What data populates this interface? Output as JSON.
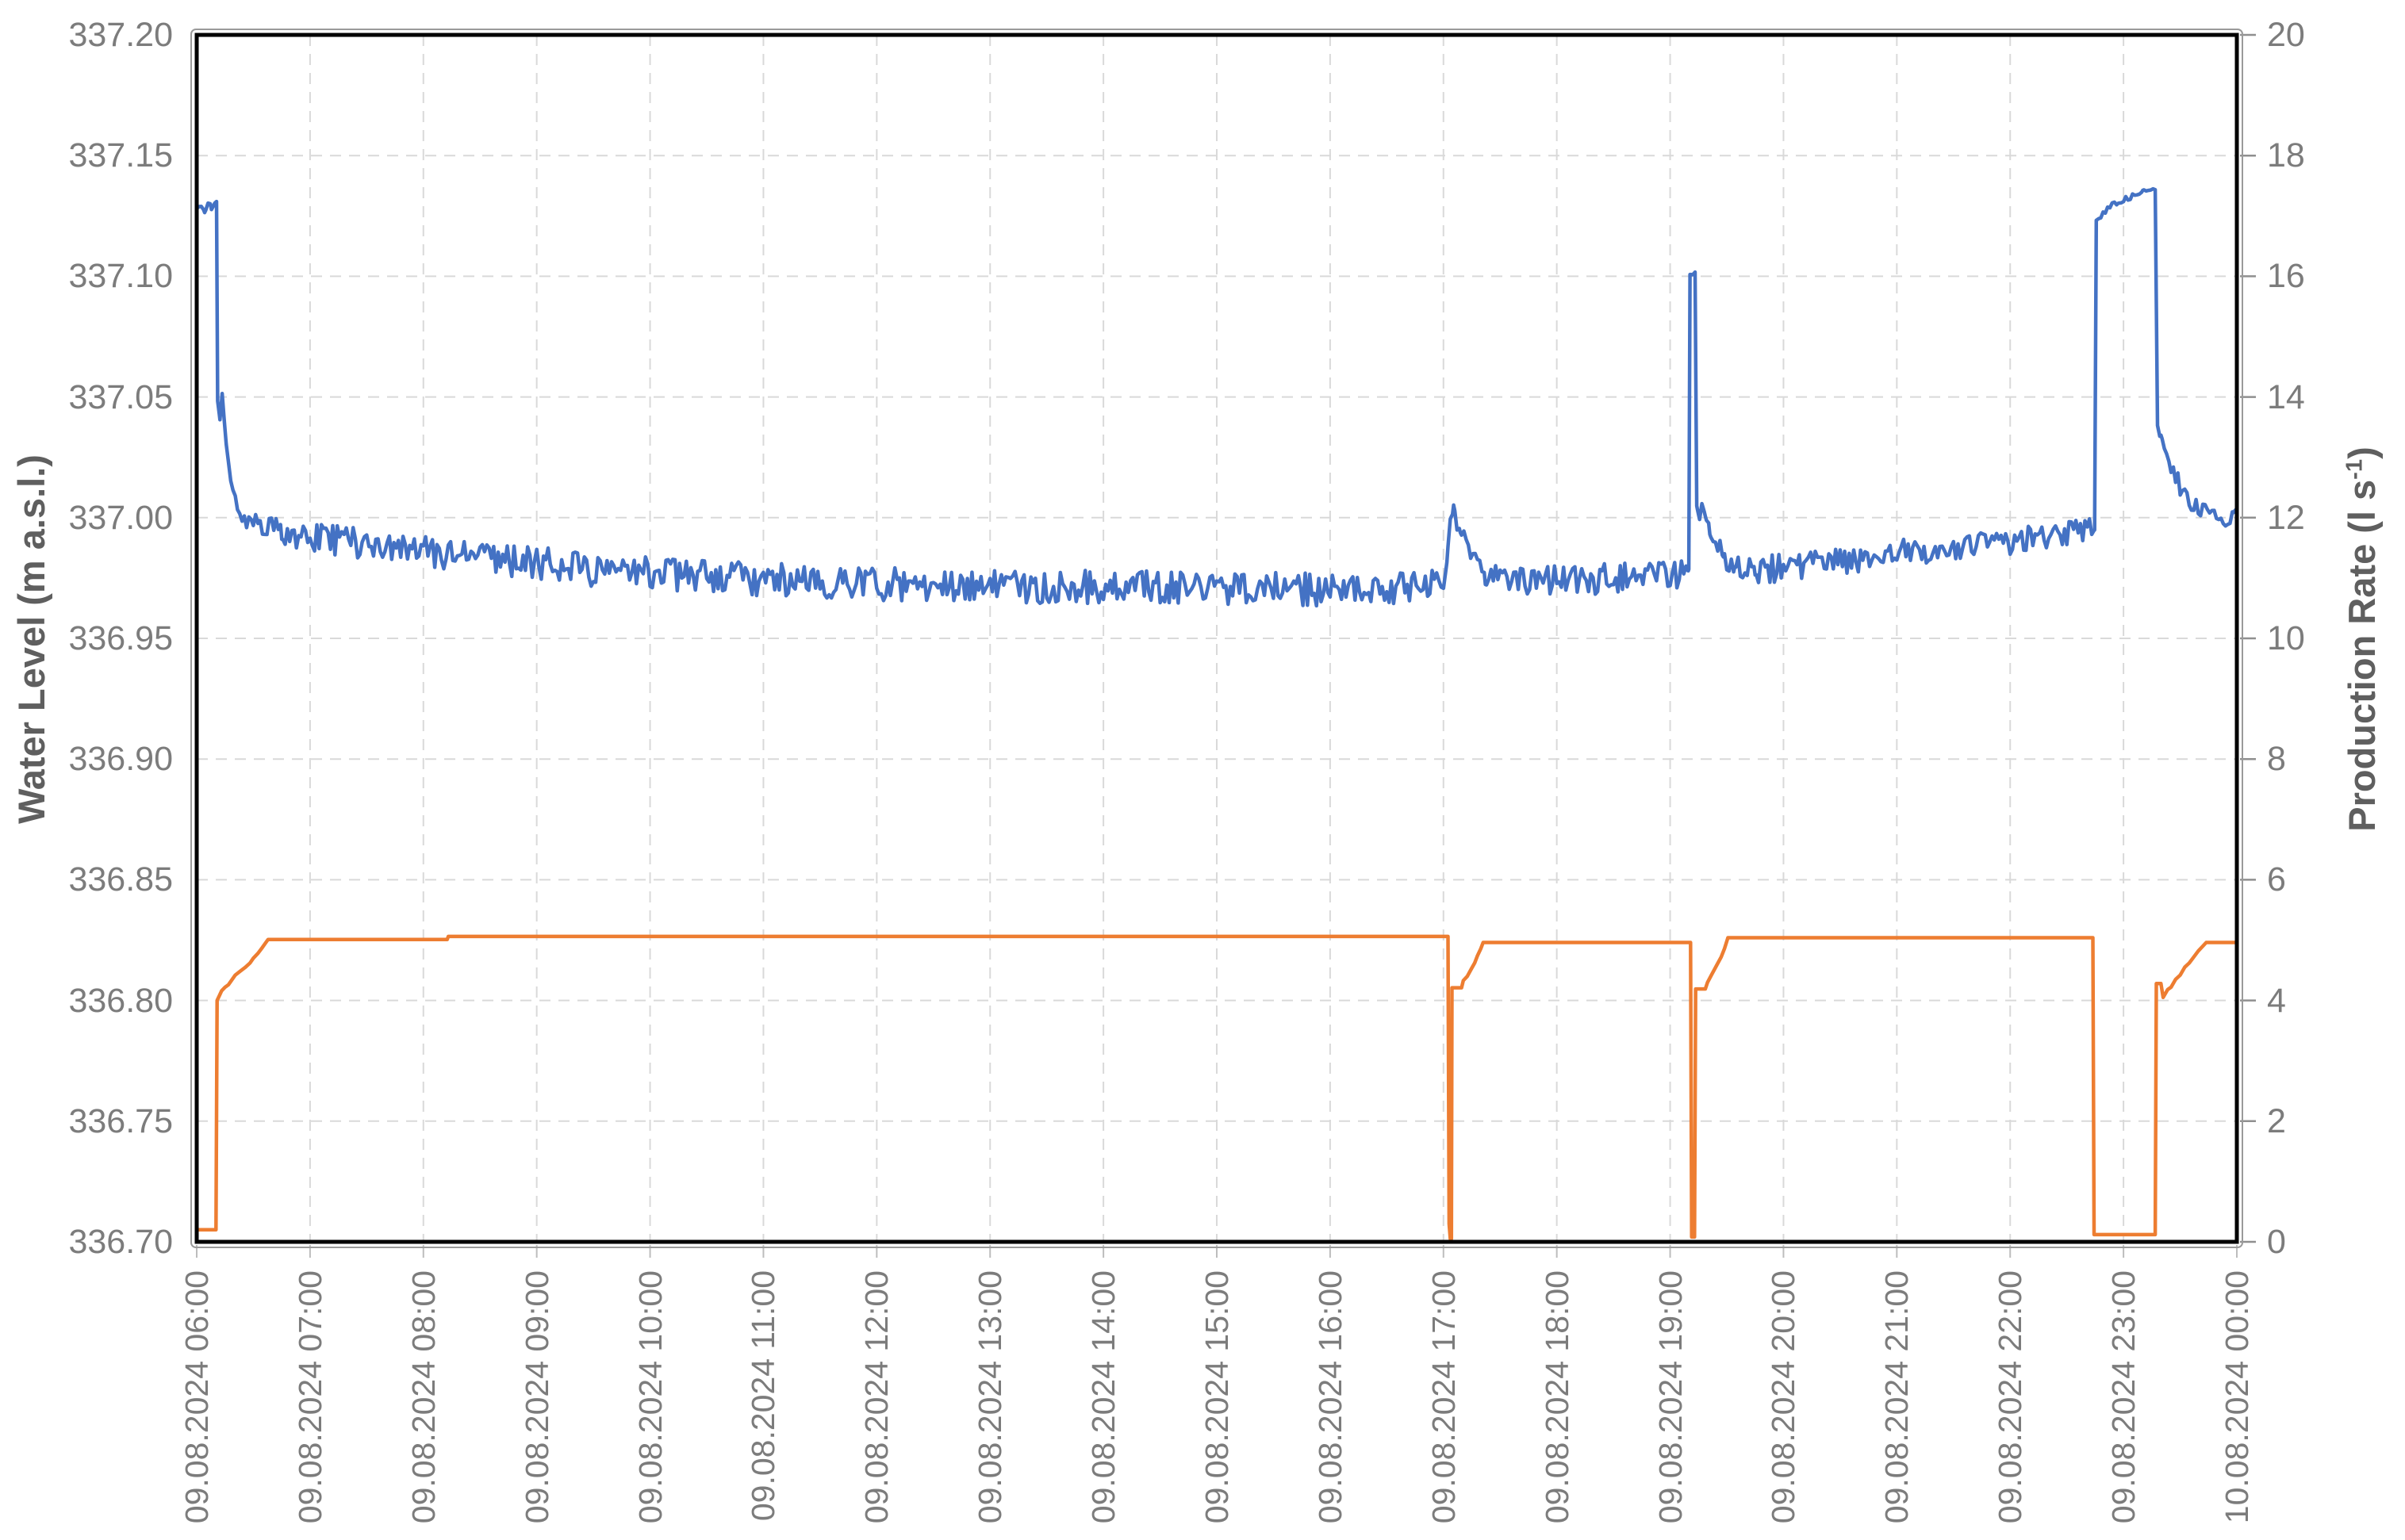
{
  "chart_data": {
    "type": "line",
    "title": "",
    "legend": "none",
    "grid": {
      "shown": true,
      "color": "#d9d9d9",
      "dash": [
        14,
        10
      ]
    },
    "x_axis": {
      "label": "",
      "range_hours": [
        6,
        24
      ],
      "tick_labels": [
        "09.08.2024 06:00",
        "09.08.2024 07:00",
        "09.08.2024 08:00",
        "09.08.2024 09:00",
        "09.08.2024 10:00",
        "09.08.2024 11:00",
        "09.08.2024 12:00",
        "09.08.2024 13:00",
        "09.08.2024 14:00",
        "09.08.2024 15:00",
        "09.08.2024 16:00",
        "09.08.2024 17:00",
        "09.08.2024 18:00",
        "09.08.2024 19:00",
        "09.08.2024 20:00",
        "09.08.2024 21:00",
        "09.08.2024 22:00",
        "09.08.2024 23:00",
        "10.08.2024 00:00"
      ]
    },
    "y_left": {
      "label": "Water Level (m a.s.l.)",
      "min": 336.7,
      "max": 337.2,
      "step": 0.05,
      "tick_labels": [
        "337.20",
        "337.15",
        "337.10",
        "337.05",
        "337.00",
        "336.95",
        "336.90",
        "336.85",
        "336.80",
        "336.75",
        "336.70"
      ]
    },
    "y_right": {
      "label_pre": "Production Rate (l s",
      "label_sup": "-1",
      "label_post": ")",
      "min": 0,
      "max": 20,
      "step": 2,
      "tick_labels": [
        "20",
        "18",
        "16",
        "14",
        "12",
        "10",
        "8",
        "6",
        "4",
        "2",
        "0"
      ]
    },
    "series": [
      {
        "name": "Water Level",
        "axis": "left",
        "color": "#4472C4",
        "line_width": 4.5,
        "noise_amplitude_points": [
          [
            6.0,
            0.0012
          ],
          [
            6.17,
            0.0012
          ],
          [
            6.19,
            0.0005
          ],
          [
            6.3,
            0.002
          ],
          [
            6.45,
            0.0045
          ],
          [
            6.7,
            0.0055
          ],
          [
            7.0,
            0.006
          ],
          [
            8.0,
            0.0065
          ],
          [
            9.0,
            0.007
          ],
          [
            10.5,
            0.007
          ],
          [
            16.88,
            0.0068
          ],
          [
            16.98,
            0.0035
          ],
          [
            17.1,
            0.0025
          ],
          [
            17.2,
            0.004
          ],
          [
            17.35,
            0.0055
          ],
          [
            17.55,
            0.0065
          ],
          [
            19.13,
            0.0065
          ],
          [
            19.16,
            0.0008
          ],
          [
            19.23,
            0.0008
          ],
          [
            19.3,
            0.003
          ],
          [
            19.45,
            0.005
          ],
          [
            19.65,
            0.006
          ],
          [
            22.4,
            0.0055
          ],
          [
            22.7,
            0.0048
          ],
          [
            22.755,
            0.0012
          ],
          [
            23.29,
            0.0012
          ],
          [
            23.34,
            0.002
          ],
          [
            23.45,
            0.0035
          ],
          [
            23.6,
            0.004
          ],
          [
            24.0,
            0.004
          ]
        ],
        "trend_points": [
          [
            6.0,
            337.128
          ],
          [
            6.04,
            337.13
          ],
          [
            6.07,
            337.1275
          ],
          [
            6.1,
            337.1305
          ],
          [
            6.13,
            337.1285
          ],
          [
            6.16,
            337.131
          ],
          [
            6.175,
            337.1305
          ],
          [
            6.185,
            337.048
          ],
          [
            6.205,
            337.04
          ],
          [
            6.225,
            337.052
          ],
          [
            6.26,
            337.03
          ],
          [
            6.3,
            337.014
          ],
          [
            6.36,
            337.004
          ],
          [
            6.44,
            336.999
          ],
          [
            6.55,
            336.996
          ],
          [
            6.75,
            336.994
          ],
          [
            7.0,
            336.992
          ],
          [
            7.5,
            336.989
          ],
          [
            8.0,
            336.986
          ],
          [
            8.5,
            336.983
          ],
          [
            9.0,
            336.981
          ],
          [
            9.5,
            336.9785
          ],
          [
            10.0,
            336.977
          ],
          [
            10.5,
            336.9755
          ],
          [
            11.0,
            336.9745
          ],
          [
            11.5,
            336.9735
          ],
          [
            12.0,
            336.9725
          ],
          [
            12.5,
            336.972
          ],
          [
            13.0,
            336.9715
          ],
          [
            13.5,
            336.971
          ],
          [
            14.0,
            336.9715
          ],
          [
            14.5,
            336.971
          ],
          [
            15.0,
            336.9705
          ],
          [
            15.5,
            336.9705
          ],
          [
            16.0,
            336.97
          ],
          [
            16.5,
            336.9705
          ],
          [
            16.88,
            336.972
          ],
          [
            17.0,
            336.974
          ],
          [
            17.03,
            336.979
          ],
          [
            17.06,
            336.999
          ],
          [
            17.09,
            337.004
          ],
          [
            17.12,
            336.997
          ],
          [
            17.15,
            336.991
          ],
          [
            17.18,
            336.994
          ],
          [
            17.22,
            336.987
          ],
          [
            17.28,
            336.982
          ],
          [
            17.37,
            336.9765
          ],
          [
            17.5,
            336.9745
          ],
          [
            17.7,
            336.9735
          ],
          [
            18.0,
            336.974
          ],
          [
            18.5,
            336.9745
          ],
          [
            19.0,
            336.9755
          ],
          [
            19.15,
            336.976
          ],
          [
            19.165,
            336.978
          ],
          [
            19.175,
            337.101
          ],
          [
            19.22,
            337.101
          ],
          [
            19.235,
            337.005
          ],
          [
            19.26,
            336.999
          ],
          [
            19.28,
            337.007
          ],
          [
            19.31,
            337.001
          ],
          [
            19.35,
            336.995
          ],
          [
            19.4,
            336.989
          ],
          [
            19.47,
            336.9835
          ],
          [
            19.57,
            336.98
          ],
          [
            19.75,
            336.978
          ],
          [
            20.0,
            336.979
          ],
          [
            20.5,
            336.982
          ],
          [
            21.0,
            336.985
          ],
          [
            21.5,
            336.988
          ],
          [
            22.0,
            336.99
          ],
          [
            22.3,
            336.9925
          ],
          [
            22.6,
            336.994
          ],
          [
            22.745,
            336.9955
          ],
          [
            22.76,
            337.123
          ],
          [
            22.82,
            337.1265
          ],
          [
            22.88,
            337.129
          ],
          [
            22.95,
            337.131
          ],
          [
            23.02,
            337.132
          ],
          [
            23.1,
            337.134
          ],
          [
            23.17,
            337.1345
          ],
          [
            23.24,
            337.136
          ],
          [
            23.28,
            337.1355
          ],
          [
            23.3,
            337.038
          ],
          [
            23.33,
            337.034
          ],
          [
            23.38,
            337.027
          ],
          [
            23.44,
            337.019
          ],
          [
            23.52,
            337.011
          ],
          [
            23.6,
            337.006
          ],
          [
            23.7,
            337.0025
          ],
          [
            23.8,
            337.001
          ],
          [
            23.9,
            337.0005
          ],
          [
            23.97,
            337.001
          ],
          [
            24.0,
            337.003
          ]
        ]
      },
      {
        "name": "Production Rate",
        "axis": "right",
        "color": "#ED7D31",
        "line_width": 4.5,
        "points": [
          [
            6.0,
            0.2
          ],
          [
            6.17,
            0.2
          ],
          [
            6.18,
            4.0
          ],
          [
            6.2,
            4.08
          ],
          [
            6.22,
            4.16
          ],
          [
            6.25,
            4.22
          ],
          [
            6.28,
            4.26
          ],
          [
            6.31,
            4.34
          ],
          [
            6.34,
            4.42
          ],
          [
            6.38,
            4.48
          ],
          [
            6.43,
            4.55
          ],
          [
            6.47,
            4.62
          ],
          [
            6.5,
            4.7
          ],
          [
            6.54,
            4.78
          ],
          [
            6.58,
            4.88
          ],
          [
            6.61,
            4.96
          ],
          [
            6.63,
            5.01
          ],
          [
            8.21,
            5.01
          ],
          [
            8.22,
            5.06
          ],
          [
            17.04,
            5.06
          ],
          [
            17.05,
            0.3
          ],
          [
            17.06,
            0.05
          ],
          [
            17.07,
            0.05
          ],
          [
            17.075,
            4.21
          ],
          [
            17.16,
            4.21
          ],
          [
            17.175,
            4.33
          ],
          [
            17.21,
            4.4
          ],
          [
            17.245,
            4.52
          ],
          [
            17.275,
            4.62
          ],
          [
            17.3,
            4.74
          ],
          [
            17.33,
            4.86
          ],
          [
            17.35,
            4.96
          ],
          [
            19.18,
            4.96
          ],
          [
            19.19,
            0.08
          ],
          [
            19.215,
            0.08
          ],
          [
            19.225,
            4.19
          ],
          [
            19.31,
            4.19
          ],
          [
            19.33,
            4.3
          ],
          [
            19.37,
            4.44
          ],
          [
            19.41,
            4.58
          ],
          [
            19.45,
            4.72
          ],
          [
            19.48,
            4.86
          ],
          [
            19.51,
            5.04
          ],
          [
            22.73,
            5.04
          ],
          [
            22.74,
            0.12
          ],
          [
            23.28,
            0.12
          ],
          [
            23.29,
            4.28
          ],
          [
            23.33,
            4.28
          ],
          [
            23.35,
            4.05
          ],
          [
            23.39,
            4.18
          ],
          [
            23.42,
            4.22
          ],
          [
            23.46,
            4.35
          ],
          [
            23.5,
            4.42
          ],
          [
            23.54,
            4.55
          ],
          [
            23.58,
            4.62
          ],
          [
            23.62,
            4.72
          ],
          [
            23.66,
            4.82
          ],
          [
            23.7,
            4.9
          ],
          [
            23.73,
            4.96
          ],
          [
            24.0,
            4.96
          ]
        ]
      }
    ],
    "plot_border_color": "#000000",
    "outer_frame_color": "#9a9a9a",
    "tick_mark_color": "#8f8f8f"
  }
}
